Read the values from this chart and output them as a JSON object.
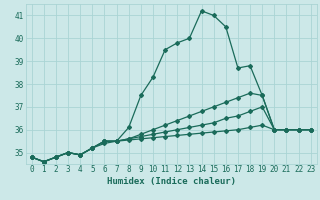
{
  "xlabel": "Humidex (Indice chaleur)",
  "background_color": "#cce8e8",
  "grid_color": "#aad4d4",
  "line_color": "#1a6b5a",
  "xlim": [
    -0.5,
    23.5
  ],
  "ylim": [
    34.5,
    41.5
  ],
  "yticks": [
    35,
    36,
    37,
    38,
    39,
    40,
    41
  ],
  "xticks": [
    0,
    1,
    2,
    3,
    4,
    5,
    6,
    7,
    8,
    9,
    10,
    11,
    12,
    13,
    14,
    15,
    16,
    17,
    18,
    19,
    20,
    21,
    22,
    23
  ],
  "series": [
    [
      34.8,
      34.6,
      34.8,
      35.0,
      34.9,
      35.2,
      35.5,
      35.5,
      36.1,
      37.5,
      38.3,
      39.5,
      39.8,
      40.0,
      41.2,
      41.0,
      40.5,
      38.7,
      38.8,
      37.5,
      36.0,
      36.0,
      36.0,
      36.0
    ],
    [
      34.8,
      34.6,
      34.8,
      35.0,
      34.9,
      35.2,
      35.4,
      35.5,
      35.6,
      35.8,
      36.0,
      36.2,
      36.4,
      36.6,
      36.8,
      37.0,
      37.2,
      37.4,
      37.6,
      37.5,
      36.0,
      36.0,
      36.0,
      36.0
    ],
    [
      34.8,
      34.6,
      34.8,
      35.0,
      34.9,
      35.2,
      35.5,
      35.5,
      35.6,
      35.7,
      35.8,
      35.9,
      36.0,
      36.1,
      36.2,
      36.3,
      36.5,
      36.6,
      36.8,
      37.0,
      36.0,
      36.0,
      36.0,
      36.0
    ],
    [
      34.8,
      34.6,
      34.8,
      35.0,
      34.9,
      35.2,
      35.5,
      35.5,
      35.55,
      35.6,
      35.65,
      35.7,
      35.75,
      35.8,
      35.85,
      35.9,
      35.95,
      36.0,
      36.1,
      36.2,
      36.0,
      36.0,
      36.0,
      36.0
    ]
  ]
}
